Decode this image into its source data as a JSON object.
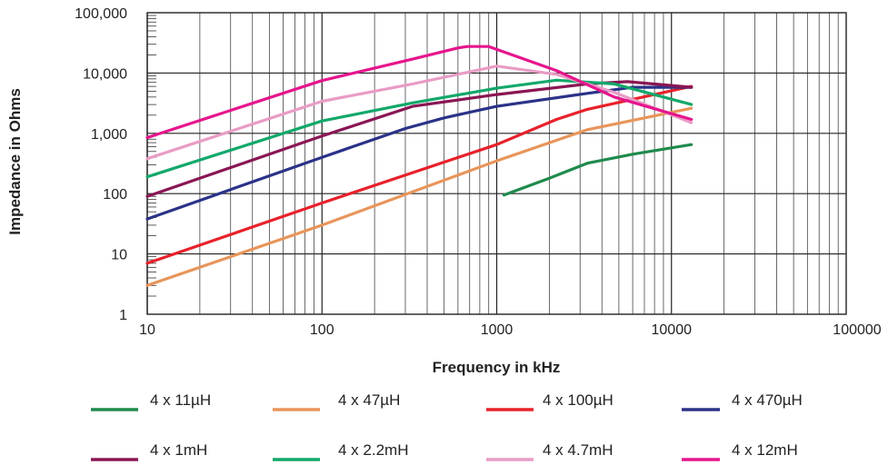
{
  "chart_data": {
    "type": "line",
    "xlabel": "Frequency in kHz",
    "ylabel": "Impedance in Ohms",
    "xscale": "log",
    "yscale": "log",
    "xlim": [
      10,
      100000
    ],
    "ylim": [
      1,
      100000
    ],
    "x_ticks": [
      "10",
      "100",
      "1000",
      "10000",
      "100000"
    ],
    "y_ticks": [
      "1",
      "10",
      "100",
      "1,000",
      "10,000",
      "100,000"
    ],
    "grid": true,
    "legend_position": "bottom",
    "series": [
      {
        "name": "4 x 11µH",
        "color": "#1f8a4c",
        "points": [
          [
            1100,
            95
          ],
          [
            2000,
            180
          ],
          [
            3300,
            320
          ],
          [
            6000,
            450
          ],
          [
            13000,
            650
          ]
        ]
      },
      {
        "name": "4 x 47µH",
        "color": "#e8955a",
        "points": [
          [
            10,
            3
          ],
          [
            100,
            30
          ],
          [
            1000,
            350
          ],
          [
            3300,
            1150
          ],
          [
            13000,
            2600
          ]
        ]
      },
      {
        "name": "4 x 100µH",
        "color": "#e8212a",
        "points": [
          [
            10,
            7
          ],
          [
            100,
            70
          ],
          [
            1000,
            650
          ],
          [
            2200,
            1700
          ],
          [
            3300,
            2500
          ],
          [
            13000,
            6000
          ]
        ]
      },
      {
        "name": "4 x 470µH",
        "color": "#2b3288",
        "points": [
          [
            10,
            38
          ],
          [
            100,
            400
          ],
          [
            300,
            1200
          ],
          [
            500,
            1800
          ],
          [
            1000,
            2800
          ],
          [
            3300,
            4600
          ],
          [
            6000,
            5800
          ],
          [
            13000,
            5800
          ]
        ]
      },
      {
        "name": "4 x 1mH",
        "color": "#8a1654",
        "points": [
          [
            10,
            90
          ],
          [
            100,
            900
          ],
          [
            330,
            2800
          ],
          [
            1000,
            4400
          ],
          [
            3300,
            6600
          ],
          [
            5600,
            7200
          ],
          [
            13000,
            5800
          ]
        ]
      },
      {
        "name": "4 x 2.2mH",
        "color": "#12a86a",
        "points": [
          [
            10,
            190
          ],
          [
            100,
            1600
          ],
          [
            330,
            3200
          ],
          [
            1000,
            5600
          ],
          [
            2200,
            7600
          ],
          [
            4700,
            6600
          ],
          [
            13000,
            3000
          ]
        ]
      },
      {
        "name": "4 x 4.7mH",
        "color": "#e99cc5",
        "points": [
          [
            10,
            380
          ],
          [
            100,
            3400
          ],
          [
            330,
            6600
          ],
          [
            1000,
            13000
          ],
          [
            2200,
            9500
          ],
          [
            4700,
            4800
          ],
          [
            13000,
            1500
          ]
        ]
      },
      {
        "name": "4 x 12mH",
        "color": "#e6158c",
        "points": [
          [
            10,
            850
          ],
          [
            100,
            7500
          ],
          [
            330,
            17000
          ],
          [
            600,
            26000
          ],
          [
            680,
            27500
          ],
          [
            900,
            27500
          ],
          [
            2200,
            11000
          ],
          [
            4700,
            4000
          ],
          [
            13000,
            1700
          ]
        ]
      }
    ]
  }
}
